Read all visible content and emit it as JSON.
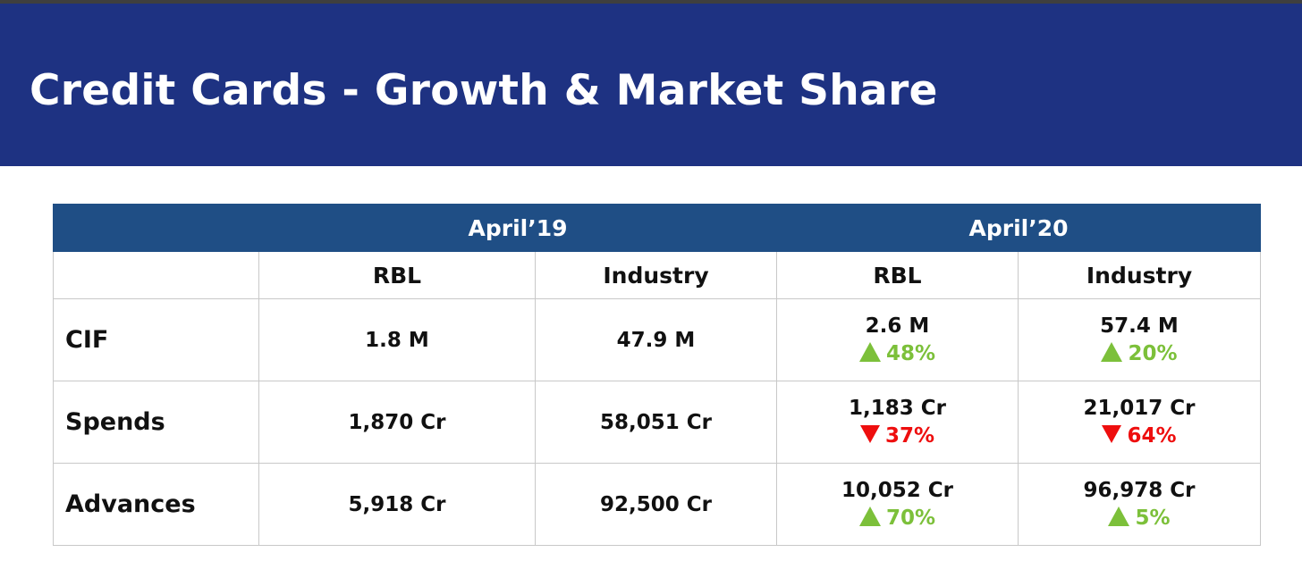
{
  "header": {
    "title": "Credit Cards - Growth & Market Share"
  },
  "colors": {
    "banner": "#1e3282",
    "table_header": "#1f4e85",
    "up": "#7cc03a",
    "down": "#ee0e0e"
  },
  "table": {
    "periods": [
      "April’19",
      "April’20"
    ],
    "subheaders": [
      "RBL",
      "Industry",
      "RBL",
      "Industry"
    ],
    "rows": [
      {
        "metric": "CIF",
        "rbl19": "1.8 M",
        "ind19": "47.9 M",
        "rbl20": "2.6 M",
        "rbl20_chg": "48%",
        "rbl20_dir": "up",
        "ind20": "57.4 M",
        "ind20_chg": "20%",
        "ind20_dir": "up"
      },
      {
        "metric": "Spends",
        "rbl19": "1,870 Cr",
        "ind19": "58,051 Cr",
        "rbl20": "1,183 Cr",
        "rbl20_chg": "37%",
        "rbl20_dir": "down",
        "ind20": "21,017 Cr",
        "ind20_chg": "64%",
        "ind20_dir": "down"
      },
      {
        "metric": "Advances",
        "rbl19": "5,918 Cr",
        "ind19": "92,500 Cr",
        "rbl20": "10,052 Cr",
        "rbl20_chg": "70%",
        "rbl20_dir": "up",
        "ind20": "96,978 Cr",
        "ind20_chg": "5%",
        "ind20_dir": "up"
      }
    ]
  }
}
